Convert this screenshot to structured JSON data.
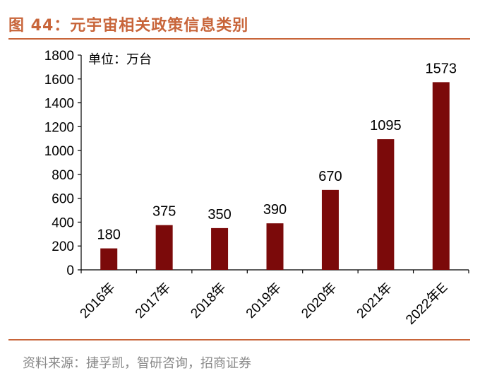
{
  "header": {
    "title": "图 44：元宇宙相关政策信息类别"
  },
  "footer": {
    "source": "资料来源：捷孚凯，智研咨询，招商证券"
  },
  "colors": {
    "accent": "#c8653a",
    "bar": "#7b0a0a"
  },
  "chart_data": {
    "type": "bar",
    "title": "",
    "unit_label": "单位：万台",
    "categories": [
      "2016年",
      "2017年",
      "2018年",
      "2019年",
      "2020年",
      "2021年",
      "2022年E"
    ],
    "values": [
      180,
      375,
      350,
      390,
      670,
      1095,
      1573
    ],
    "ylim": [
      0,
      1800
    ],
    "yticks": [
      0,
      200,
      400,
      600,
      800,
      1000,
      1200,
      1400,
      1600,
      1800
    ],
    "xlabel": "",
    "ylabel": "",
    "grid": false,
    "data_labels": true
  }
}
